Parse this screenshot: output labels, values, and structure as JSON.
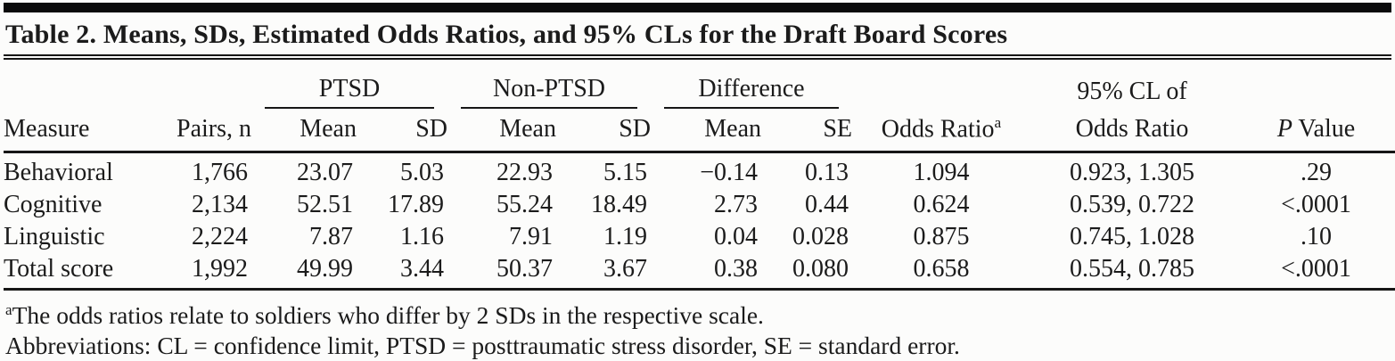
{
  "table": {
    "title": "Table 2. Means, SDs, Estimated Odds Ratios, and 95% CLs for the Draft Board Scores",
    "col_groups": [
      {
        "label": "PTSD",
        "sub": [
          "Mean",
          "SD"
        ]
      },
      {
        "label": "Non-PTSD",
        "sub": [
          "Mean",
          "SD"
        ]
      },
      {
        "label": "Difference",
        "sub": [
          "Mean",
          "SE"
        ]
      }
    ],
    "columns": {
      "measure": "Measure",
      "pairs": "Pairs, n",
      "odds_ratio": "Odds Ratio",
      "odds_ratio_sup": "a",
      "cl_line1": "95% CL of",
      "cl_line2": "Odds Ratio",
      "p_italic": "P",
      "p_rest": " Value"
    },
    "rows": [
      {
        "measure": "Behavioral",
        "pairs": "1,766",
        "ptsd_mean": "23.07",
        "ptsd_sd": "5.03",
        "nonptsd_mean": "22.93",
        "nonptsd_sd": "5.15",
        "diff_mean": "−0.14",
        "diff_se": "0.13",
        "odds_ratio": "1.094",
        "cl": "0.923, 1.305",
        "p": ".29"
      },
      {
        "measure": "Cognitive",
        "pairs": "2,134",
        "ptsd_mean": "52.51",
        "ptsd_sd": "17.89",
        "nonptsd_mean": "55.24",
        "nonptsd_sd": "18.49",
        "diff_mean": "2.73",
        "diff_se": "0.44",
        "odds_ratio": "0.624",
        "cl": "0.539, 0.722",
        "p": "<.0001"
      },
      {
        "measure": "Linguistic",
        "pairs": "2,224",
        "ptsd_mean": "7.87",
        "ptsd_sd": "1.16",
        "nonptsd_mean": "7.91",
        "nonptsd_sd": "1.19",
        "diff_mean": "0.04",
        "diff_se": "0.028",
        "odds_ratio": "0.875",
        "cl": "0.745, 1.028",
        "p": ".10"
      },
      {
        "measure": "Total score",
        "pairs": "1,992",
        "ptsd_mean": "49.99",
        "ptsd_sd": "3.44",
        "nonptsd_mean": "50.37",
        "nonptsd_sd": "3.67",
        "diff_mean": "0.38",
        "diff_se": "0.080",
        "odds_ratio": "0.658",
        "cl": "0.554, 0.785",
        "p": "<.0001"
      }
    ],
    "footnotes": [
      {
        "sup": "a",
        "text": "The odds ratios relate to soldiers who differ by 2 SDs in the respective scale."
      },
      {
        "sup": "",
        "text": "Abbreviations: CL = confidence limit, PTSD = posttraumatic stress disorder, SE = standard error."
      }
    ],
    "colors": {
      "text": "#1b1b1b",
      "rule": "#161616",
      "background": "#fcfcfb"
    }
  }
}
